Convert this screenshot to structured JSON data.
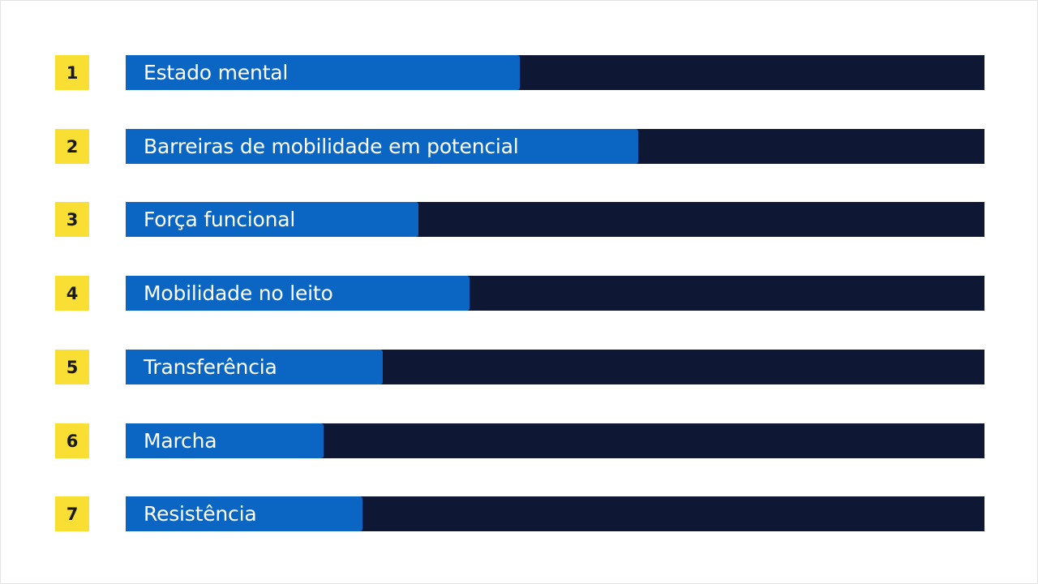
{
  "colors": {
    "badge": "#f9df34",
    "track": "#0e1733",
    "fill": "#0a66c2"
  },
  "items": [
    {
      "number": "1",
      "label": "Estado mental",
      "progress": 0.459
    },
    {
      "number": "2",
      "label": "Barreiras de mobilidade em potencial",
      "progress": 0.597
    },
    {
      "number": "3",
      "label": "Força funcional",
      "progress": 0.341
    },
    {
      "number": "4",
      "label": "Mobilidade no leito",
      "progress": 0.4
    },
    {
      "number": "5",
      "label": "Transferência",
      "progress": 0.299
    },
    {
      "number": "6",
      "label": "Marcha",
      "progress": 0.23
    },
    {
      "number": "7",
      "label": "Resistência",
      "progress": 0.276
    }
  ]
}
